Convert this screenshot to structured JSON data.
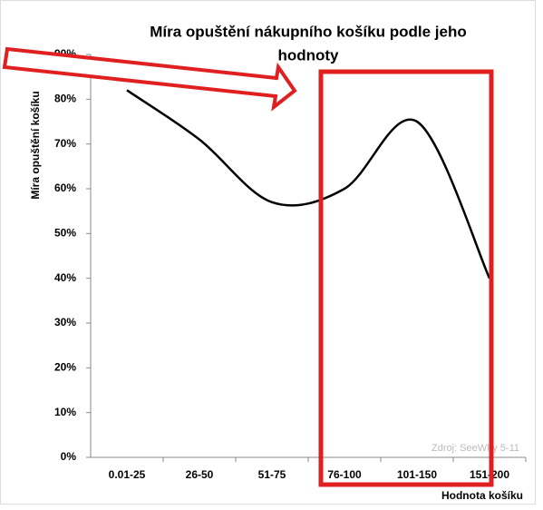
{
  "chart_data": {
    "type": "line",
    "title_lines": [
      "Míra opuštění nákupního košíku podle jeho",
      "hodnoty"
    ],
    "y_label": "Míra opuštění košíku",
    "x_label": "Hodnota košíku",
    "source": "Zdroj: SeeWhy 5-11",
    "categories": [
      "0.01-25",
      "26-50",
      "51-75",
      "76-100",
      "101-150",
      "151-200"
    ],
    "values": [
      82,
      71,
      57,
      60,
      75,
      40
    ],
    "color": "#000000",
    "ylim": [
      0,
      90
    ],
    "yticks": [
      {
        "value": 0,
        "label": "0%"
      },
      {
        "value": 10,
        "label": "10%"
      },
      {
        "value": 20,
        "label": "20%"
      },
      {
        "value": 30,
        "label": "30%"
      },
      {
        "value": 40,
        "label": "40%"
      },
      {
        "value": 50,
        "label": "50%"
      },
      {
        "value": 60,
        "label": "60%"
      },
      {
        "value": 70,
        "label": "70%"
      },
      {
        "value": 80,
        "label": "80%"
      },
      {
        "value": 90,
        "label": "90%"
      }
    ],
    "grid": false
  }
}
